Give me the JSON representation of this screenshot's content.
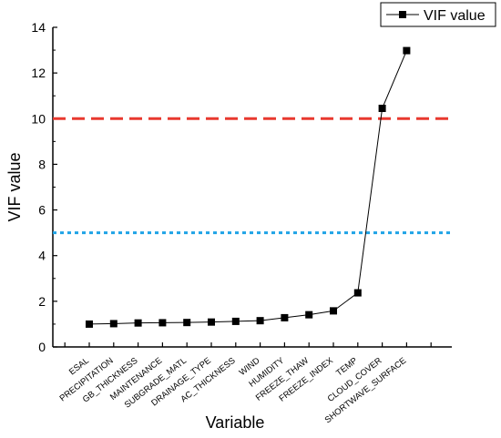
{
  "chart_data": {
    "type": "line",
    "xlabel": "Variable",
    "ylabel": "VIF value",
    "ylim": [
      0,
      14
    ],
    "yticks": [
      0,
      2,
      4,
      6,
      8,
      10,
      12,
      14
    ],
    "categories": [
      "ESAL",
      "PRECIPITATION",
      "GB_THICKNESS",
      "MAINTENANCE",
      "SUBGRADE_MATL",
      "DRAINAGE_TYPE",
      "AC_THICKNESS",
      "WIND",
      "HUMIDITY",
      "FREEZE_THAW",
      "FREEZE_INDEX",
      "TEMP",
      "CLOUD_COVER",
      "SHORTWAVE_SURFACE"
    ],
    "series": [
      {
        "name": "VIF value",
        "values": [
          1.0,
          1.02,
          1.05,
          1.06,
          1.07,
          1.09,
          1.12,
          1.15,
          1.28,
          1.41,
          1.58,
          2.37,
          10.45,
          12.98
        ],
        "color": "#000000",
        "marker": "square"
      }
    ],
    "reference_lines": [
      {
        "y": 10,
        "color": "#e8392f",
        "style": "dashed"
      },
      {
        "y": 5,
        "color": "#1fa3e6",
        "style": "dotted"
      }
    ],
    "legend_position": "top-right",
    "grid": false
  }
}
